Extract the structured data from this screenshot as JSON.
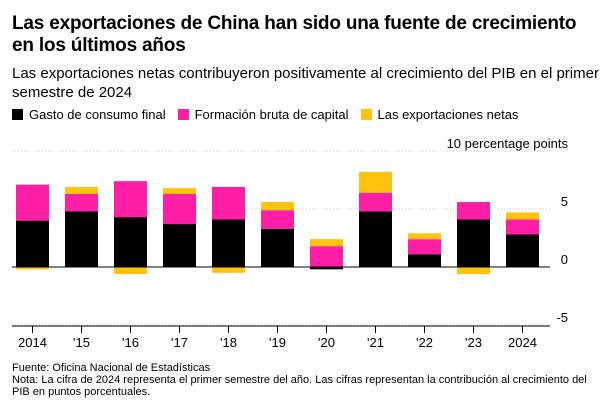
{
  "header": {
    "title": "Las exportaciones de China han sido una fuente de crecimiento en los últimos años",
    "subtitle": "Las exportaciones netas contribuyeron positivamente al crecimiento del PIB en el primer semestre de 2024"
  },
  "legend": [
    {
      "label": "Gasto de consumo final",
      "color": "#000000"
    },
    {
      "label": "Formación bruta de capital",
      "color": "#ff1fa6"
    },
    {
      "label": "Las exportaciones netas",
      "color": "#ffc20e"
    }
  ],
  "footer": {
    "source": "Fuente: Oficina Nacional de Estadísticas",
    "note": "Nota: La cifra de 2024 representa el primer semestre del año. Las cifras representan la contribución al crecimiento del PIB en puntos porcentuales."
  },
  "chart_data": {
    "type": "bar",
    "stacked": true,
    "categories": [
      "2014",
      "'15",
      "'16",
      "'17",
      "'18",
      "'19",
      "'20",
      "'21",
      "'22",
      "'23",
      "2024"
    ],
    "series": [
      {
        "name": "Gasto de consumo final",
        "color": "#000000",
        "values": [
          4.0,
          4.8,
          4.3,
          3.7,
          4.1,
          3.3,
          -0.2,
          4.8,
          1.1,
          4.1,
          2.8
        ]
      },
      {
        "name": "Formación bruta de capital",
        "color": "#ff1fa6",
        "values": [
          3.1,
          1.5,
          3.1,
          2.6,
          2.8,
          1.6,
          1.8,
          1.6,
          1.3,
          1.5,
          1.3
        ]
      },
      {
        "name": "Las exportaciones netas",
        "color": "#ffc20e",
        "values": [
          -0.2,
          0.6,
          -0.6,
          0.5,
          -0.5,
          0.7,
          0.6,
          1.8,
          0.5,
          -0.6,
          0.6
        ]
      }
    ],
    "y_axis_unit_label": "10 percentage points",
    "y_ticks": [
      {
        "value": 10,
        "label": "10 percentage points"
      },
      {
        "value": 5,
        "label": "5"
      },
      {
        "value": 0,
        "label": "0"
      },
      {
        "value": -5,
        "label": "-5"
      }
    ],
    "ylim": [
      -5,
      10
    ],
    "grid": true,
    "legend_position": "top-left"
  }
}
